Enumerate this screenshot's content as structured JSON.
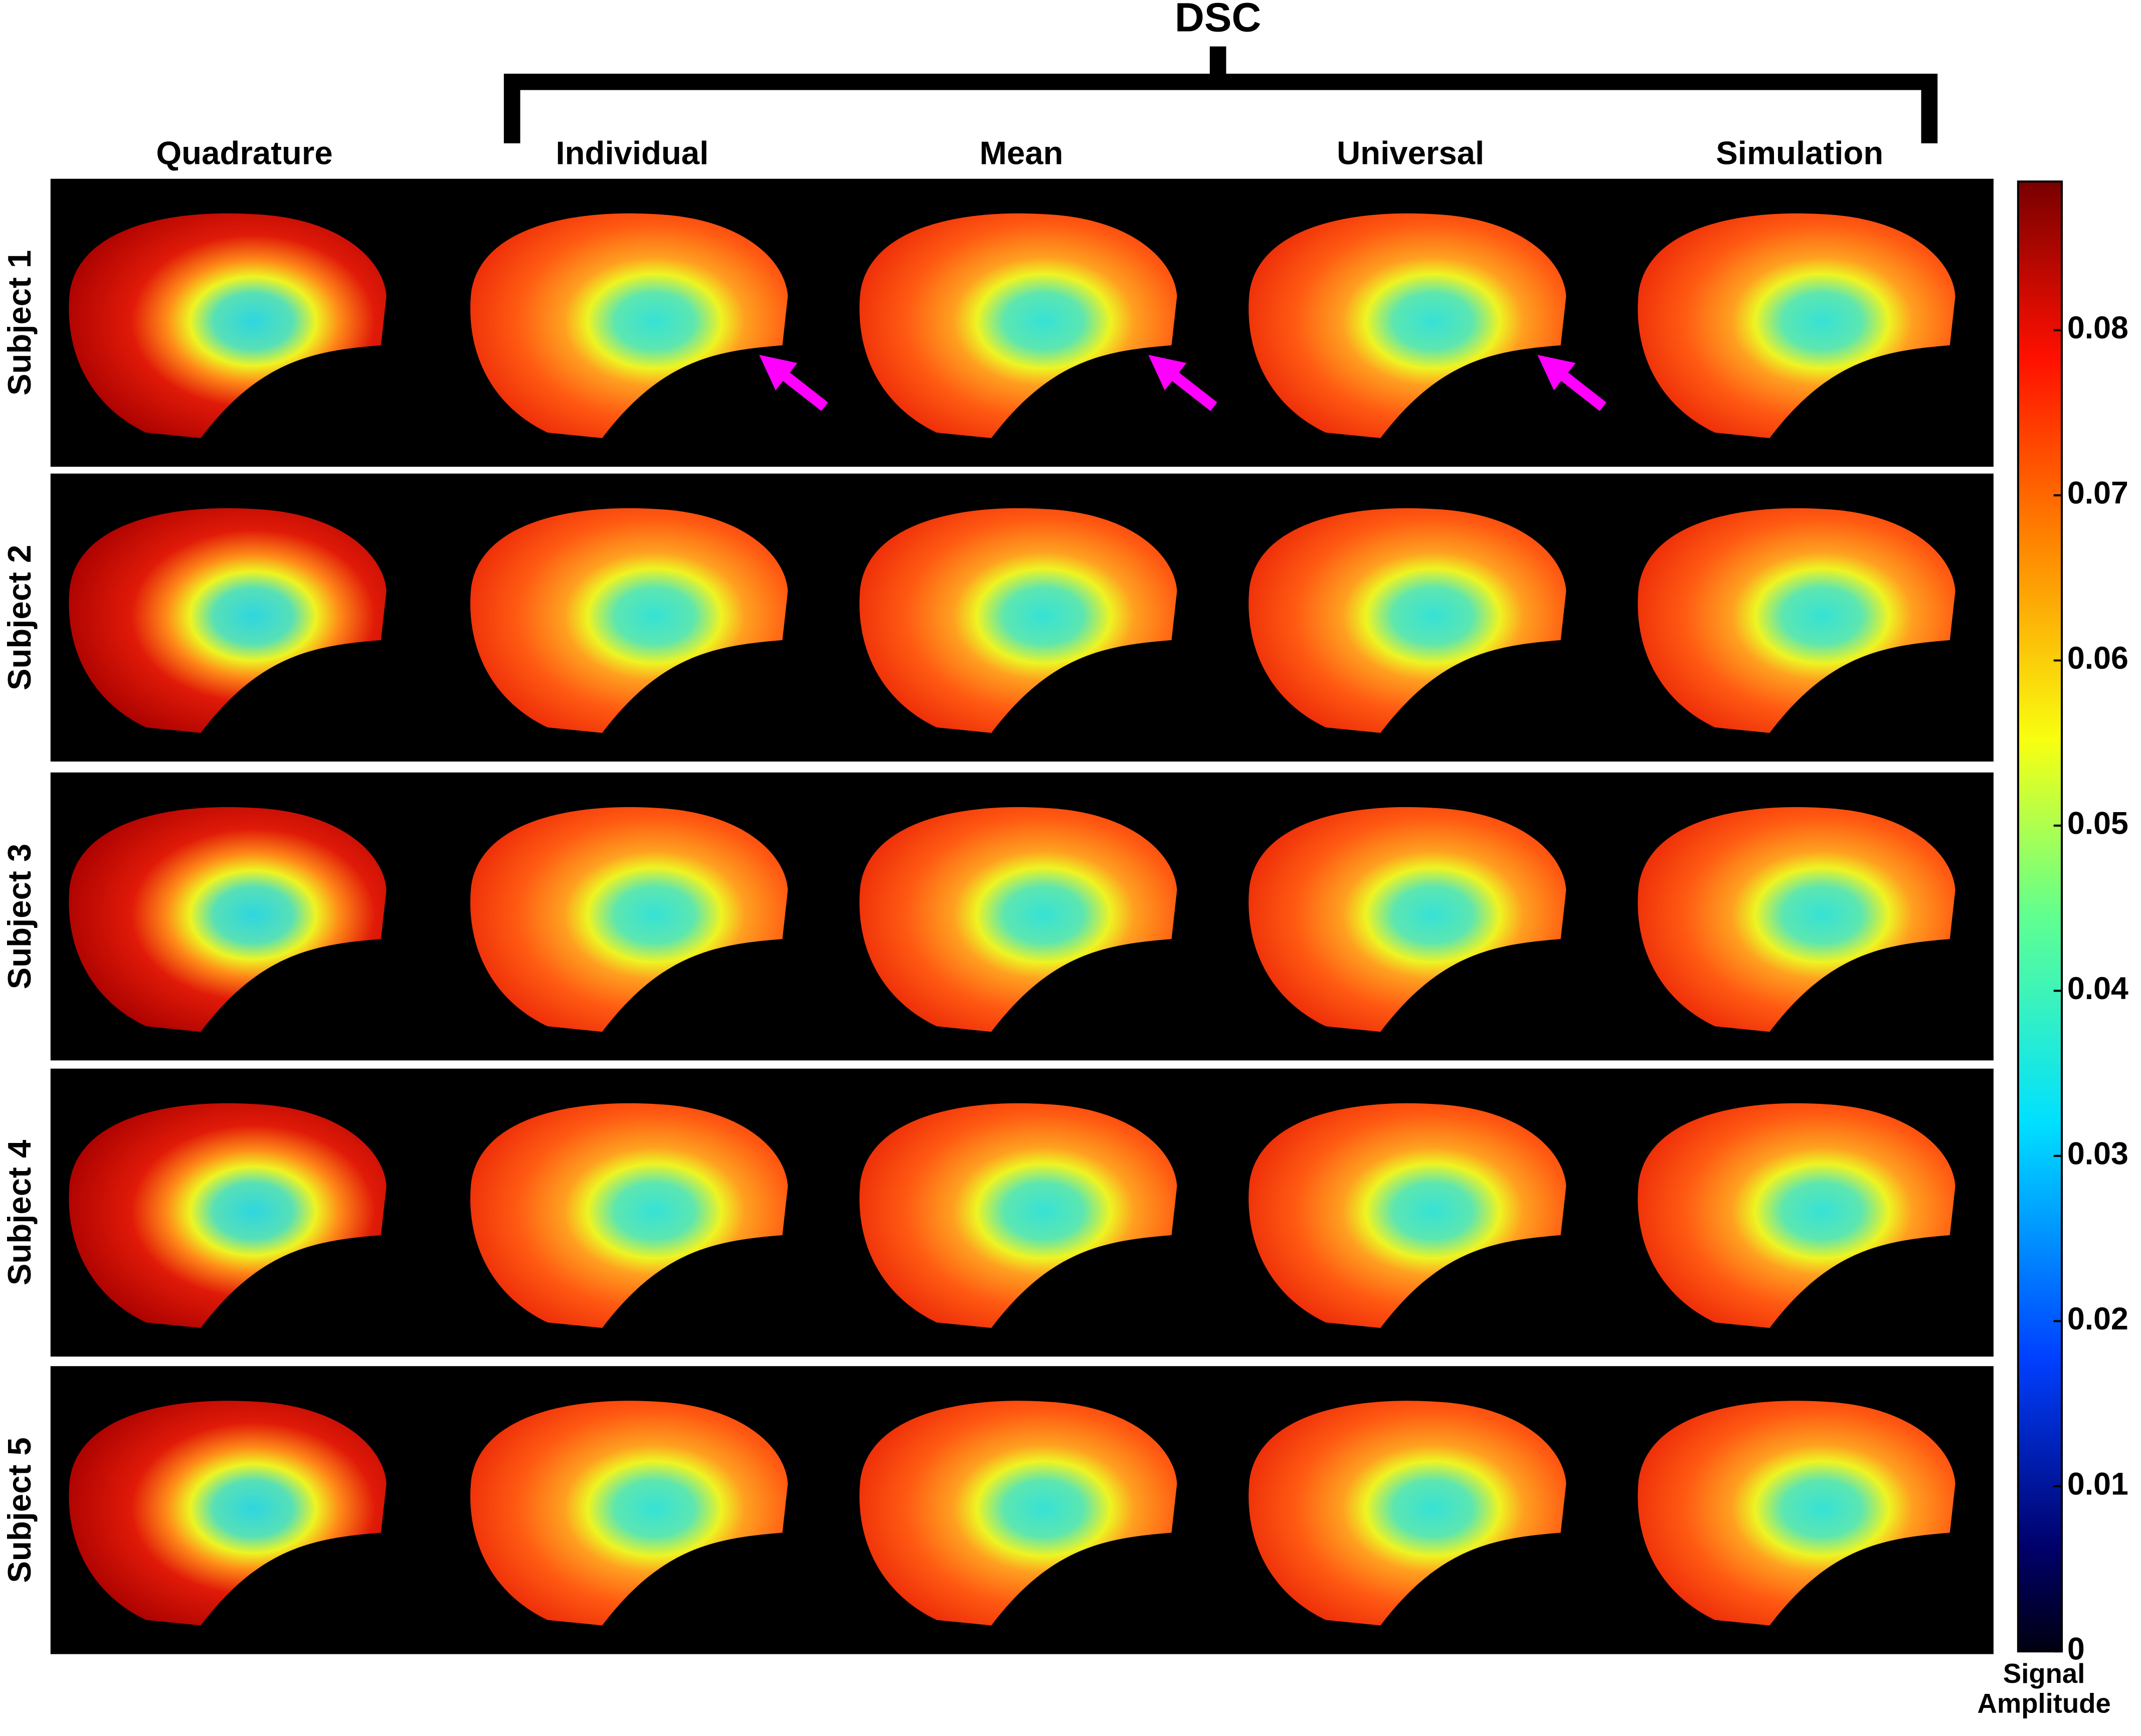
{
  "group_label": "DSC",
  "columns": [
    "Quadrature",
    "Individual",
    "Mean",
    "Universal",
    "Simulation"
  ],
  "rows": [
    "Subject 1",
    "Subject 2",
    "Subject 3",
    "Subject 4",
    "Subject 5"
  ],
  "colorbar": {
    "label": "Signal Amplitude",
    "lim": [
      0,
      0.089
    ],
    "ticks": [
      0,
      0.01,
      0.02,
      0.03,
      0.04,
      0.05,
      0.06,
      0.07,
      0.08
    ]
  }
}
